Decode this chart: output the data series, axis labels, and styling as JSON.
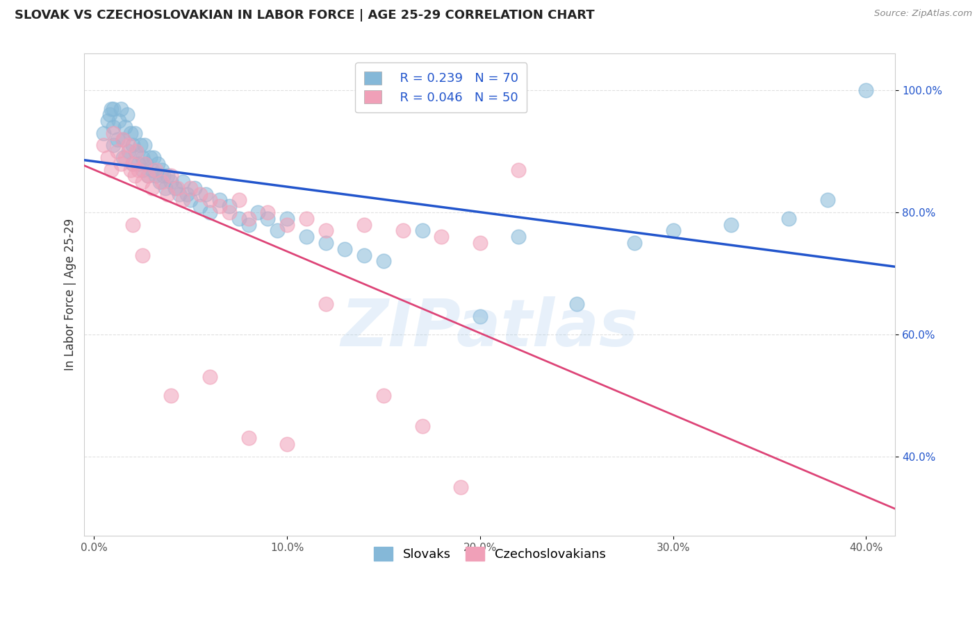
{
  "title": "SLOVAK VS CZECHOSLOVAKIAN IN LABOR FORCE | AGE 25-29 CORRELATION CHART",
  "source": "Source: ZipAtlas.com",
  "ylabel": "In Labor Force | Age 25-29",
  "x_tick_labels": [
    "0.0%",
    "10.0%",
    "20.0%",
    "30.0%",
    "40.0%"
  ],
  "x_tick_values": [
    0.0,
    0.1,
    0.2,
    0.3,
    0.4
  ],
  "y_tick_labels": [
    "40.0%",
    "60.0%",
    "80.0%",
    "100.0%"
  ],
  "y_tick_values": [
    0.4,
    0.6,
    0.8,
    1.0
  ],
  "xlim": [
    -0.005,
    0.415
  ],
  "ylim": [
    0.27,
    1.06
  ],
  "blue_R": 0.239,
  "blue_N": 70,
  "pink_R": 0.046,
  "pink_N": 50,
  "blue_color": "#85B8D8",
  "pink_color": "#F0A0B8",
  "blue_line_color": "#2255CC",
  "pink_line_color": "#DD4477",
  "legend_label_blue": "Slovaks",
  "legend_label_pink": "Czechoslovakians",
  "blue_scatter_x": [
    0.005,
    0.007,
    0.008,
    0.009,
    0.01,
    0.01,
    0.01,
    0.012,
    0.013,
    0.014,
    0.015,
    0.015,
    0.016,
    0.017,
    0.018,
    0.019,
    0.02,
    0.02,
    0.021,
    0.022,
    0.023,
    0.024,
    0.025,
    0.025,
    0.026,
    0.027,
    0.028,
    0.029,
    0.03,
    0.031,
    0.032,
    0.033,
    0.034,
    0.035,
    0.036,
    0.037,
    0.038,
    0.04,
    0.042,
    0.044,
    0.046,
    0.048,
    0.05,
    0.052,
    0.055,
    0.058,
    0.06,
    0.065,
    0.07,
    0.075,
    0.08,
    0.085,
    0.09,
    0.095,
    0.1,
    0.11,
    0.12,
    0.13,
    0.14,
    0.15,
    0.17,
    0.2,
    0.22,
    0.25,
    0.28,
    0.3,
    0.33,
    0.36,
    0.38,
    0.4
  ],
  "blue_scatter_y": [
    0.93,
    0.95,
    0.96,
    0.97,
    0.91,
    0.94,
    0.97,
    0.92,
    0.95,
    0.97,
    0.89,
    0.92,
    0.94,
    0.96,
    0.9,
    0.93,
    0.88,
    0.91,
    0.93,
    0.9,
    0.88,
    0.91,
    0.87,
    0.89,
    0.91,
    0.88,
    0.86,
    0.89,
    0.87,
    0.89,
    0.86,
    0.88,
    0.85,
    0.87,
    0.86,
    0.84,
    0.86,
    0.85,
    0.84,
    0.83,
    0.85,
    0.83,
    0.82,
    0.84,
    0.81,
    0.83,
    0.8,
    0.82,
    0.81,
    0.79,
    0.78,
    0.8,
    0.79,
    0.77,
    0.79,
    0.76,
    0.75,
    0.74,
    0.73,
    0.72,
    0.77,
    0.63,
    0.76,
    0.65,
    0.75,
    0.77,
    0.78,
    0.79,
    0.82,
    1.0
  ],
  "pink_scatter_x": [
    0.005,
    0.007,
    0.009,
    0.01,
    0.012,
    0.014,
    0.015,
    0.016,
    0.018,
    0.019,
    0.02,
    0.021,
    0.022,
    0.023,
    0.025,
    0.026,
    0.028,
    0.03,
    0.032,
    0.035,
    0.038,
    0.04,
    0.043,
    0.046,
    0.05,
    0.055,
    0.06,
    0.065,
    0.07,
    0.075,
    0.08,
    0.09,
    0.1,
    0.11,
    0.12,
    0.14,
    0.16,
    0.18,
    0.2,
    0.22,
    0.02,
    0.025,
    0.04,
    0.06,
    0.08,
    0.1,
    0.12,
    0.15,
    0.17,
    0.19
  ],
  "pink_scatter_y": [
    0.91,
    0.89,
    0.87,
    0.93,
    0.9,
    0.88,
    0.92,
    0.89,
    0.91,
    0.87,
    0.88,
    0.86,
    0.9,
    0.87,
    0.85,
    0.88,
    0.86,
    0.84,
    0.87,
    0.85,
    0.83,
    0.86,
    0.84,
    0.82,
    0.84,
    0.83,
    0.82,
    0.81,
    0.8,
    0.82,
    0.79,
    0.8,
    0.78,
    0.79,
    0.77,
    0.78,
    0.77,
    0.76,
    0.75,
    0.87,
    0.78,
    0.73,
    0.5,
    0.53,
    0.43,
    0.42,
    0.65,
    0.5,
    0.45,
    0.35
  ],
  "watermark_text": "ZIPatlas",
  "background_color": "#FFFFFF",
  "grid_color": "#DDDDDD",
  "title_fontsize": 13,
  "axis_label_fontsize": 12,
  "tick_fontsize": 11,
  "legend_fontsize": 13
}
